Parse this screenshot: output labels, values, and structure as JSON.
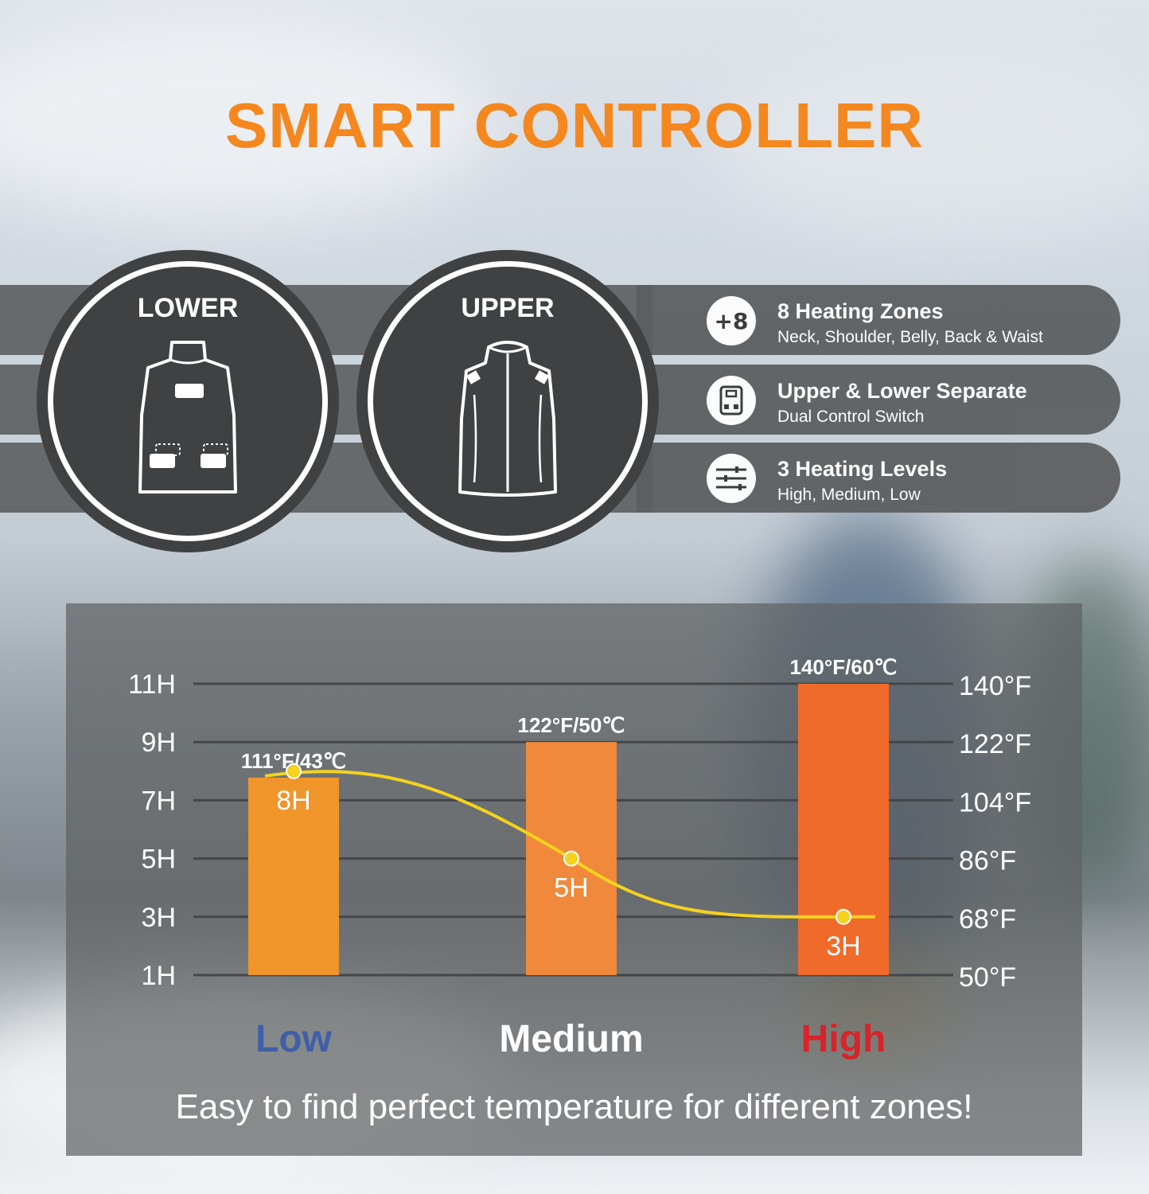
{
  "title": "SMART CONTROLLER",
  "circles": [
    {
      "label": "LOWER",
      "icon": "vest-back-icon"
    },
    {
      "label": "UPPER",
      "icon": "vest-front-icon"
    }
  ],
  "features": [
    {
      "icon_text": "+8",
      "icon": "plus-eight-icon",
      "title": "8 Heating Zones",
      "subtitle": "Neck, Shoulder, Belly, Back & Waist"
    },
    {
      "icon_text": "",
      "icon": "controller-icon",
      "title": "Upper & Lower Separate",
      "subtitle": "Dual Control Switch"
    },
    {
      "icon_text": "",
      "icon": "sliders-icon",
      "title": "3 Heating Levels",
      "subtitle": "High, Medium, Low"
    }
  ],
  "chart_data": {
    "type": "bar",
    "categories": [
      "Low",
      "Medium",
      "High"
    ],
    "category_colors": [
      "#3f5fa8",
      "#ffffff",
      "#d8232a"
    ],
    "bar_colors": [
      "#f0952a",
      "#f0893b",
      "#f06a2a"
    ],
    "temperature_labels": [
      "111°F/43℃",
      "122°F/50℃",
      "140°F/60℃"
    ],
    "temperatures_f": [
      111,
      122,
      140
    ],
    "hours": [
      8,
      5,
      3
    ],
    "hour_labels": [
      "8H",
      "5H",
      "3H"
    ],
    "left_axis_ticks": [
      "1H",
      "3H",
      "5H",
      "7H",
      "9H",
      "11H"
    ],
    "right_axis_ticks": [
      "50°F",
      "68°F",
      "86°F",
      "104°F",
      "122°F",
      "140°F"
    ],
    "left_axis_range": [
      1,
      11
    ],
    "right_axis_range": [
      50,
      140
    ],
    "line_color": "#f5d21e",
    "grid": true
  },
  "caption": "Easy to find perfect temperature for different zones!"
}
